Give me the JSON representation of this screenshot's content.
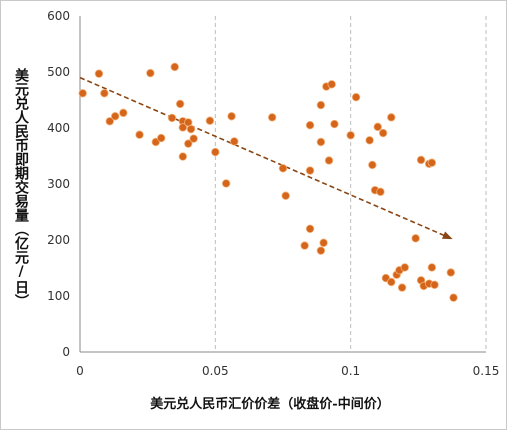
{
  "chart_data": {
    "type": "scatter",
    "title": "",
    "xlabel": "美元兑人民币汇价价差（收盘价-中间价）",
    "ylabel": "美元兑人民币即期交易量（亿元/日）",
    "xlim": [
      0,
      0.15
    ],
    "ylim": [
      0,
      600
    ],
    "x_ticks": [
      "0",
      "0.05",
      "0.1",
      "0.15"
    ],
    "y_ticks": [
      "0",
      "100",
      "200",
      "300",
      "400",
      "500",
      "600"
    ],
    "grid": "vertical dashed",
    "marker_color": "#d4651b",
    "trend_color": "#8b4513",
    "trend_line": {
      "x": [
        0,
        0.137
      ],
      "y": [
        490,
        203
      ]
    },
    "points": [
      {
        "x": 0.001,
        "y": 462
      },
      {
        "x": 0.007,
        "y": 497
      },
      {
        "x": 0.009,
        "y": 462
      },
      {
        "x": 0.011,
        "y": 412
      },
      {
        "x": 0.013,
        "y": 421
      },
      {
        "x": 0.016,
        "y": 427
      },
      {
        "x": 0.022,
        "y": 388
      },
      {
        "x": 0.026,
        "y": 498
      },
      {
        "x": 0.028,
        "y": 375
      },
      {
        "x": 0.03,
        "y": 382
      },
      {
        "x": 0.034,
        "y": 418
      },
      {
        "x": 0.035,
        "y": 509
      },
      {
        "x": 0.037,
        "y": 443
      },
      {
        "x": 0.038,
        "y": 412
      },
      {
        "x": 0.038,
        "y": 401
      },
      {
        "x": 0.038,
        "y": 349
      },
      {
        "x": 0.04,
        "y": 410
      },
      {
        "x": 0.04,
        "y": 372
      },
      {
        "x": 0.041,
        "y": 398
      },
      {
        "x": 0.042,
        "y": 381
      },
      {
        "x": 0.048,
        "y": 413
      },
      {
        "x": 0.05,
        "y": 357
      },
      {
        "x": 0.054,
        "y": 301
      },
      {
        "x": 0.056,
        "y": 421
      },
      {
        "x": 0.057,
        "y": 376
      },
      {
        "x": 0.071,
        "y": 419
      },
      {
        "x": 0.075,
        "y": 328
      },
      {
        "x": 0.076,
        "y": 279
      },
      {
        "x": 0.083,
        "y": 190
      },
      {
        "x": 0.085,
        "y": 405
      },
      {
        "x": 0.085,
        "y": 324
      },
      {
        "x": 0.085,
        "y": 220
      },
      {
        "x": 0.089,
        "y": 441
      },
      {
        "x": 0.089,
        "y": 375
      },
      {
        "x": 0.089,
        "y": 181
      },
      {
        "x": 0.09,
        "y": 195
      },
      {
        "x": 0.091,
        "y": 474
      },
      {
        "x": 0.092,
        "y": 342
      },
      {
        "x": 0.093,
        "y": 478
      },
      {
        "x": 0.094,
        "y": 407
      },
      {
        "x": 0.1,
        "y": 387
      },
      {
        "x": 0.102,
        "y": 455
      },
      {
        "x": 0.107,
        "y": 378
      },
      {
        "x": 0.108,
        "y": 334
      },
      {
        "x": 0.109,
        "y": 289
      },
      {
        "x": 0.11,
        "y": 402
      },
      {
        "x": 0.111,
        "y": 286
      },
      {
        "x": 0.112,
        "y": 391
      },
      {
        "x": 0.113,
        "y": 132
      },
      {
        "x": 0.115,
        "y": 419
      },
      {
        "x": 0.115,
        "y": 125
      },
      {
        "x": 0.117,
        "y": 138
      },
      {
        "x": 0.118,
        "y": 146
      },
      {
        "x": 0.119,
        "y": 115
      },
      {
        "x": 0.12,
        "y": 151
      },
      {
        "x": 0.124,
        "y": 203
      },
      {
        "x": 0.126,
        "y": 343
      },
      {
        "x": 0.126,
        "y": 128
      },
      {
        "x": 0.127,
        "y": 118
      },
      {
        "x": 0.129,
        "y": 336
      },
      {
        "x": 0.129,
        "y": 122
      },
      {
        "x": 0.13,
        "y": 338
      },
      {
        "x": 0.13,
        "y": 151
      },
      {
        "x": 0.131,
        "y": 120
      },
      {
        "x": 0.137,
        "y": 142
      },
      {
        "x": 0.138,
        "y": 97
      }
    ]
  }
}
